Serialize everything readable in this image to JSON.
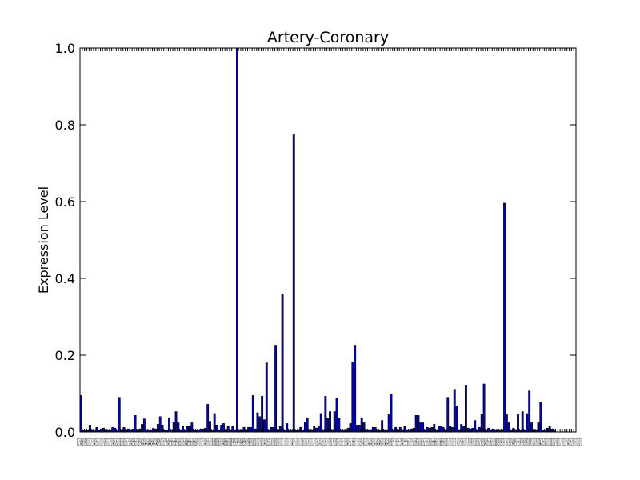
{
  "chart_data": {
    "type": "bar",
    "title": "Artery-Coronary",
    "xlabel": "",
    "ylabel": "Expression Level",
    "ylim": [
      0,
      1.0
    ],
    "yticks": [
      "0.0",
      "0.2",
      "0.4",
      "0.6",
      "0.8",
      "1.0"
    ],
    "xlim": [
      0,
      219
    ],
    "bar_color": "#0000bf",
    "edge_color": "#000000",
    "grid": false,
    "legend": "none",
    "xtick_label_text": "0123456789101112131415161718192021222324252627282930313233343536373839404142434445464748495051525354555657585960616263646566676869707172737475767778798081828384858687888990919293949596979899100101102103104105106107108109110111112113114115116117118119120121122123124125126127128129130131132133134135136137138139140141142143144145146147148149150151152153154155156157158159160161162163164165166167168169170171172173174175176177178179180181182183184185186187188189190191192193194195196197198199200201202203204205206207208209210211212213214215216217218219",
    "values": [
      0.095,
      0.004,
      0.003,
      0.004,
      0.018,
      0.006,
      0.003,
      0.012,
      0.004,
      0.008,
      0.01,
      0.006,
      0.004,
      0.005,
      0.012,
      0.01,
      0.003,
      0.09,
      0.004,
      0.012,
      0.006,
      0.008,
      0.006,
      0.008,
      0.043,
      0.006,
      0.008,
      0.02,
      0.034,
      0.006,
      0.005,
      0.004,
      0.01,
      0.008,
      0.02,
      0.04,
      0.018,
      0.004,
      0.005,
      0.037,
      0.006,
      0.026,
      0.053,
      0.024,
      0.006,
      0.014,
      0.005,
      0.014,
      0.014,
      0.024,
      0.004,
      0.006,
      0.006,
      0.008,
      0.008,
      0.01,
      0.072,
      0.028,
      0.004,
      0.048,
      0.018,
      0.005,
      0.018,
      0.022,
      0.006,
      0.014,
      0.004,
      0.014,
      0.006,
      1.0,
      0.006,
      0.004,
      0.012,
      0.006,
      0.012,
      0.012,
      0.095,
      0.008,
      0.05,
      0.04,
      0.093,
      0.032,
      0.18,
      0.006,
      0.012,
      0.012,
      0.226,
      0.006,
      0.014,
      0.358,
      0.004,
      0.022,
      0.004,
      0.006,
      0.774,
      0.004,
      0.006,
      0.012,
      0.004,
      0.026,
      0.037,
      0.006,
      0.006,
      0.016,
      0.01,
      0.014,
      0.048,
      0.006,
      0.093,
      0.035,
      0.053,
      0.006,
      0.053,
      0.088,
      0.035,
      0.006,
      0.004,
      0.006,
      0.01,
      0.022,
      0.182,
      0.226,
      0.018,
      0.018,
      0.037,
      0.024,
      0.006,
      0.006,
      0.006,
      0.012,
      0.012,
      0.006,
      0.004,
      0.03,
      0.006,
      0.004,
      0.045,
      0.098,
      0.006,
      0.012,
      0.004,
      0.012,
      0.006,
      0.014,
      0.006,
      0.006,
      0.008,
      0.01,
      0.043,
      0.043,
      0.024,
      0.024,
      0.006,
      0.012,
      0.01,
      0.012,
      0.02,
      0.006,
      0.016,
      0.014,
      0.012,
      0.006,
      0.09,
      0.014,
      0.012,
      0.111,
      0.068,
      0.006,
      0.02,
      0.014,
      0.122,
      0.01,
      0.008,
      0.01,
      0.03,
      0.006,
      0.012,
      0.045,
      0.125,
      0.006,
      0.01,
      0.006,
      0.008,
      0.006,
      0.006,
      0.006,
      0.006,
      0.596,
      0.045,
      0.024,
      0.004,
      0.01,
      0.006,
      0.045,
      0.004,
      0.053,
      0.004,
      0.048,
      0.107,
      0.024,
      0.006,
      0.006,
      0.024,
      0.077,
      0.004,
      0.006,
      0.01,
      0.014,
      0.008,
      0.004
    ]
  }
}
